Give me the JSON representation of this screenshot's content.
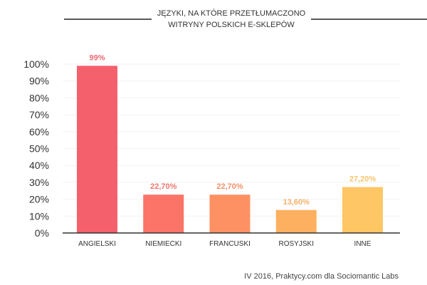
{
  "chart_data": {
    "type": "bar",
    "title_lines": [
      "JĘZYKI, NA KTÓRE PRZETŁUMACZONO",
      "WITRYNY POLSKICH E-SKLEPÓW"
    ],
    "categories": [
      "ANGIELSKI",
      "NIEMIECKI",
      "FRANCUSKI",
      "ROSYJSKI",
      "INNE"
    ],
    "values": [
      99,
      22.7,
      22.7,
      13.6,
      27.2
    ],
    "data_labels": [
      "99%",
      "22,70%",
      "22,70%",
      "13,60%",
      "27,20%"
    ],
    "colors": [
      "#f4606c",
      "#fb7467",
      "#fd9163",
      "#fdb05f",
      "#fec664"
    ],
    "label_colors": [
      "#ea6a72",
      "#f0766c",
      "#f5906a",
      "#f7b067",
      "#f8c56a"
    ],
    "yticks": [
      "0%",
      "10%",
      "20%",
      "30%",
      "40%",
      "50%",
      "60%",
      "70%",
      "80%",
      "90%",
      "100%"
    ],
    "ylim": [
      0,
      100
    ],
    "grid": true,
    "xlabel": "",
    "ylabel": "",
    "source": "IV 2016, Praktycy.com dla Sociomantic Labs"
  }
}
